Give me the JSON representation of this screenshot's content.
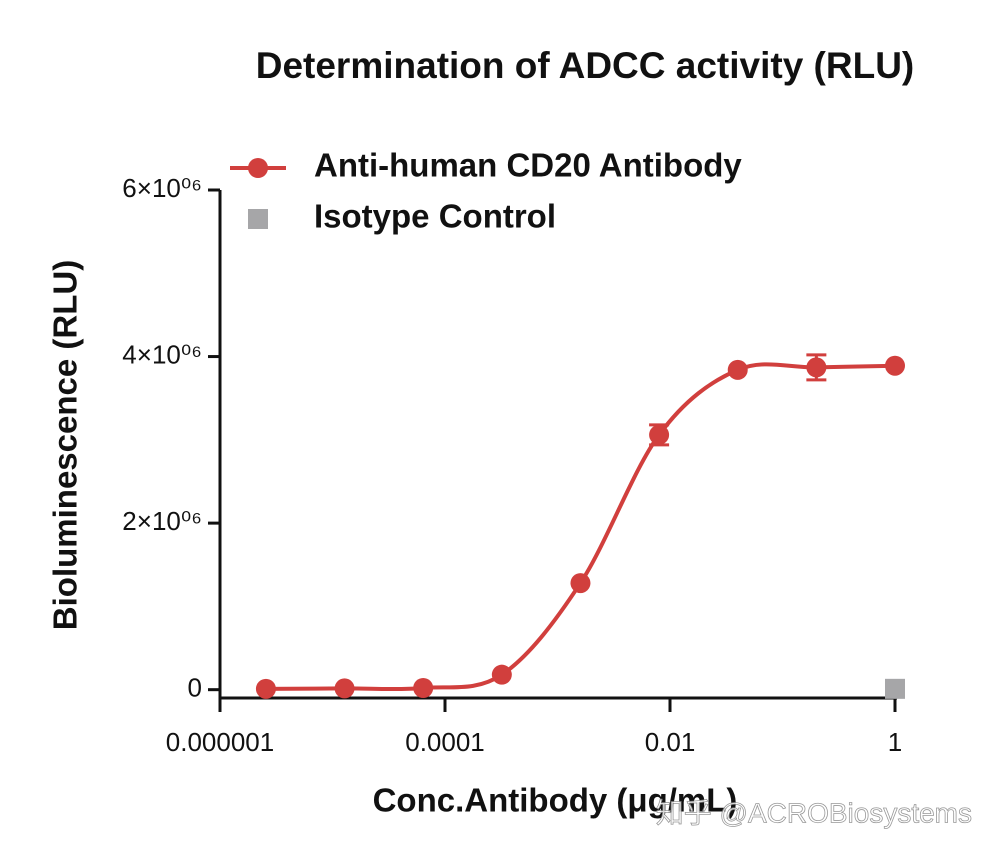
{
  "chart_data": {
    "type": "line",
    "title": "Determination of  ADCC activity (RLU)",
    "x_label": "Conc.Antibody (μg/mL)",
    "y_label": "Bioluminescence (RLU)",
    "watermark": "知乎 @ACROBiosystems",
    "log_x": true,
    "x": [
      2.56e-06,
      1.28e-05,
      6.4e-05,
      0.00032,
      0.0016,
      0.008,
      0.04,
      0.2,
      1
    ],
    "series": [
      {
        "name": "Anti-human CD20 Antibody",
        "color": "#d13f3d",
        "marker": "circle",
        "values": [
          10000,
          15000,
          20000,
          180000,
          1280000,
          3060000,
          3840000,
          3870000,
          3890000
        ],
        "errors": [
          null,
          null,
          null,
          null,
          null,
          120000,
          null,
          150000,
          null
        ]
      },
      {
        "name": "Isotype Control",
        "color": "#a6a6a8",
        "marker": "square",
        "values": [
          null,
          null,
          null,
          null,
          null,
          null,
          null,
          null,
          10000
        ]
      }
    ],
    "xlim": [
      1e-06,
      1
    ],
    "xticks": [
      {
        "value": 1e-06,
        "label": "0.000001"
      },
      0.0001,
      0.01,
      1
    ],
    "ylim": [
      -100000,
      6000000
    ],
    "yticks": [
      0,
      {
        "value": 2000000,
        "label": "2×10⁰⁶"
      },
      {
        "value": 4000000,
        "label": "4×10⁰⁶"
      },
      {
        "value": 6000000,
        "label": "6×10⁰⁶"
      }
    ]
  }
}
